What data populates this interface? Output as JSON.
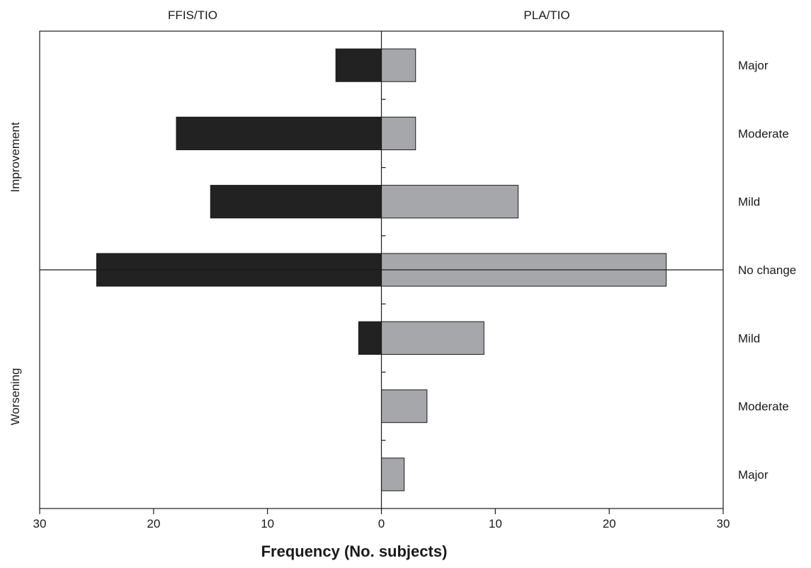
{
  "chart_data": {
    "type": "bar",
    "orientation": "horizontal",
    "layout": "back-to-back",
    "xlabel": "Frequency (No. subjects)",
    "xlim": [
      -30,
      30
    ],
    "xticks": [
      -30,
      -20,
      -10,
      0,
      10,
      20,
      30
    ],
    "xtick_labels": [
      "30",
      "20",
      "10",
      "0",
      "10",
      "20",
      "30"
    ],
    "categories": [
      "Major",
      "Moderate",
      "Mild",
      "No change",
      "Mild",
      "Moderate",
      "Major"
    ],
    "groups": [
      {
        "label": "Improvement",
        "categories_index": [
          0,
          1,
          2
        ]
      },
      {
        "label": "Worsening",
        "categories_index": [
          4,
          5,
          6
        ]
      }
    ],
    "series": [
      {
        "name": "FFIS/TIO",
        "side": "left",
        "color": "#222222",
        "values": [
          4,
          18,
          15,
          25,
          2,
          0,
          0
        ]
      },
      {
        "name": "PLA/TIO",
        "side": "right",
        "color": "#a6a7aa",
        "values": [
          3,
          3,
          12,
          25,
          9,
          4,
          2
        ]
      }
    ],
    "grid": false,
    "legend": "none"
  }
}
